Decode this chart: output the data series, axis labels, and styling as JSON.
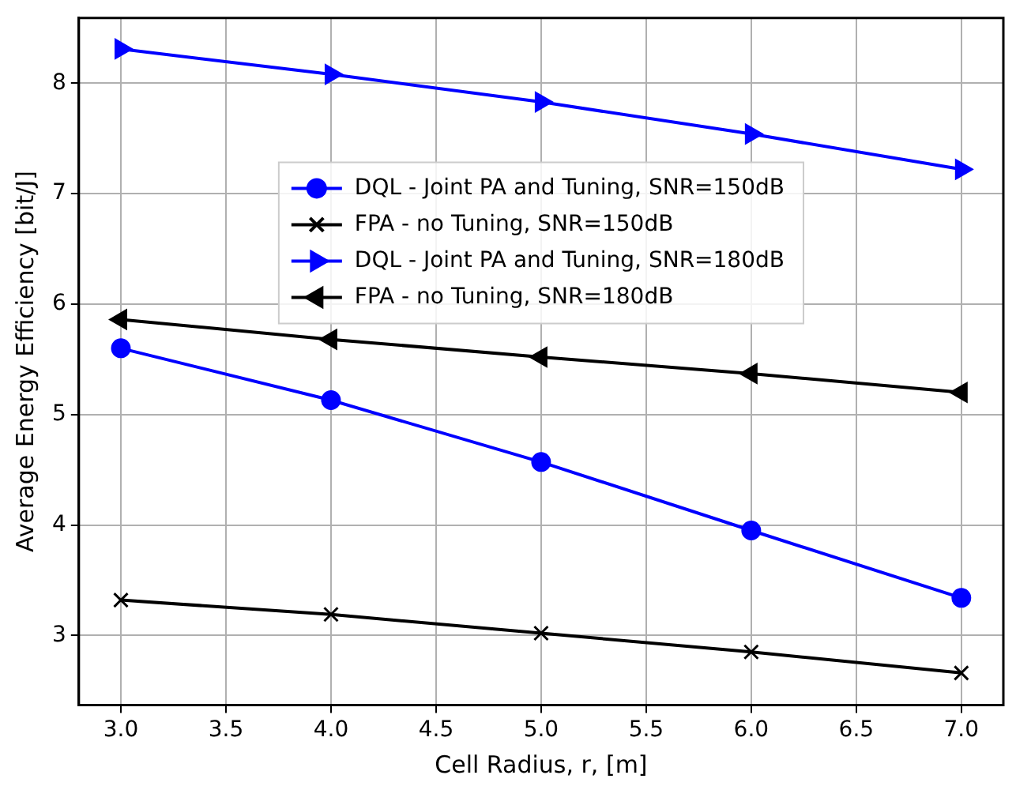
{
  "chart_data": {
    "type": "line",
    "xlabel": "Cell Radius, r, [m]",
    "ylabel": "Average Energy Efficiency [bit/J]",
    "x": [
      3.0,
      4.0,
      5.0,
      6.0,
      7.0
    ],
    "series": [
      {
        "name": "DQL - Joint PA and Tuning, SNR=150dB",
        "color": "#0000ff",
        "marker": "circle",
        "values": [
          5.6,
          5.13,
          4.57,
          3.95,
          3.34
        ]
      },
      {
        "name": "FPA - no Tuning, SNR=150dB",
        "color": "#000000",
        "marker": "cross",
        "values": [
          3.32,
          3.19,
          3.02,
          2.85,
          2.66
        ]
      },
      {
        "name": "DQL - Joint PA and Tuning, SNR=180dB",
        "color": "#0000ff",
        "marker": "triangle-right",
        "values": [
          8.31,
          8.08,
          7.83,
          7.54,
          7.22
        ]
      },
      {
        "name": "FPA - no Tuning, SNR=180dB",
        "color": "#000000",
        "marker": "triangle-left",
        "values": [
          5.86,
          5.68,
          5.52,
          5.37,
          5.2
        ]
      }
    ],
    "xlim": [
      2.8,
      7.2
    ],
    "xticks": [
      {
        "value": 3,
        "label": "3.0"
      },
      {
        "value": 3.5,
        "label": "3.5"
      },
      {
        "value": 4,
        "label": "4.0"
      },
      {
        "value": 4.5,
        "label": "4.5"
      },
      {
        "value": 5,
        "label": "5.0"
      },
      {
        "value": 5.5,
        "label": "5.5"
      },
      {
        "value": 6,
        "label": "6.0"
      },
      {
        "value": 6.5,
        "label": "6.5"
      },
      {
        "value": 7,
        "label": "7.0"
      }
    ],
    "ylim": [
      2.37,
      8.59
    ],
    "yticks": [
      3,
      4,
      5,
      6,
      7,
      8
    ],
    "grid": true,
    "legend": "top",
    "line_style": "solid"
  }
}
